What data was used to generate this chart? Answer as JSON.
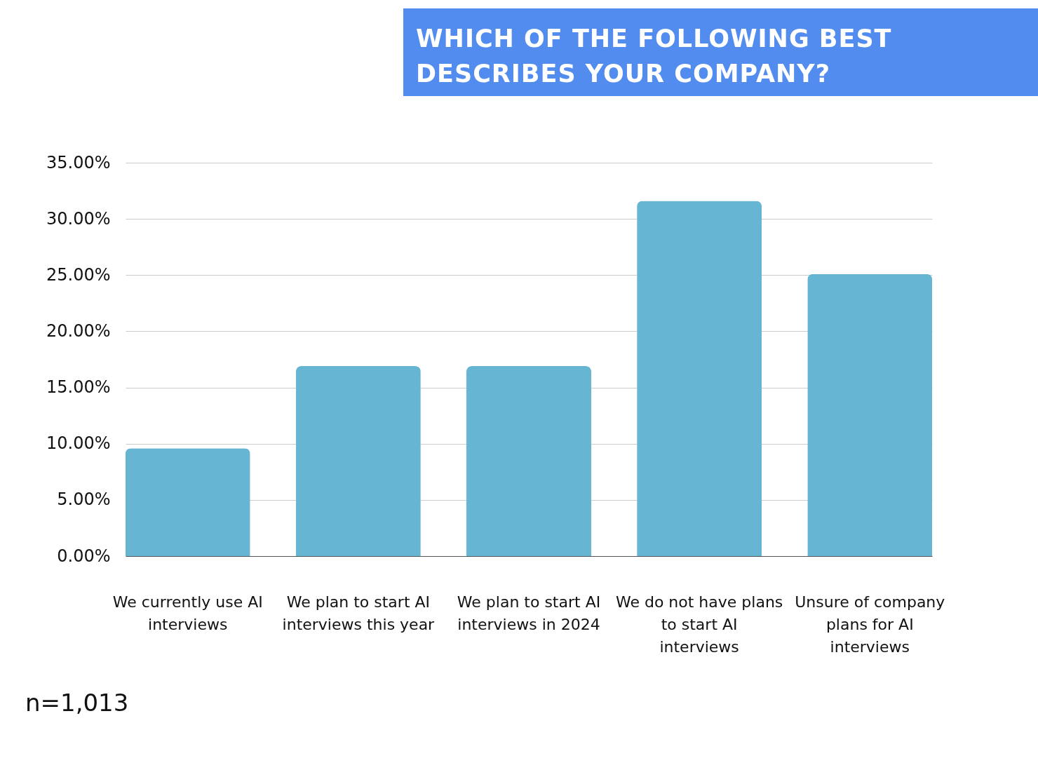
{
  "chart_data": {
    "type": "bar",
    "title": "WHICH OF THE FOLLOWING BEST DESCRIBES YOUR COMPANY?",
    "categories": [
      "We currently use AI interviews",
      "We plan to start AI interviews this year",
      "We plan to start AI interviews in 2024",
      "We do not have plans to start AI interviews",
      "Unsure of company plans for AI interviews"
    ],
    "values": [
      9.6,
      16.9,
      16.9,
      31.6,
      25.1
    ],
    "color": "#66b5d3",
    "ylim": [
      0,
      35
    ],
    "yticks": [
      {
        "value": 0,
        "label": "0.00%"
      },
      {
        "value": 5,
        "label": "5.00%"
      },
      {
        "value": 10,
        "label": "10.00%"
      },
      {
        "value": 15,
        "label": "15.00%"
      },
      {
        "value": 20,
        "label": "20.00%"
      },
      {
        "value": 25,
        "label": "25.00%"
      },
      {
        "value": 30,
        "label": "30.00%"
      },
      {
        "value": 35,
        "label": "35.00%"
      }
    ],
    "grid": "y",
    "annotations": [
      "n=1,013"
    ]
  }
}
